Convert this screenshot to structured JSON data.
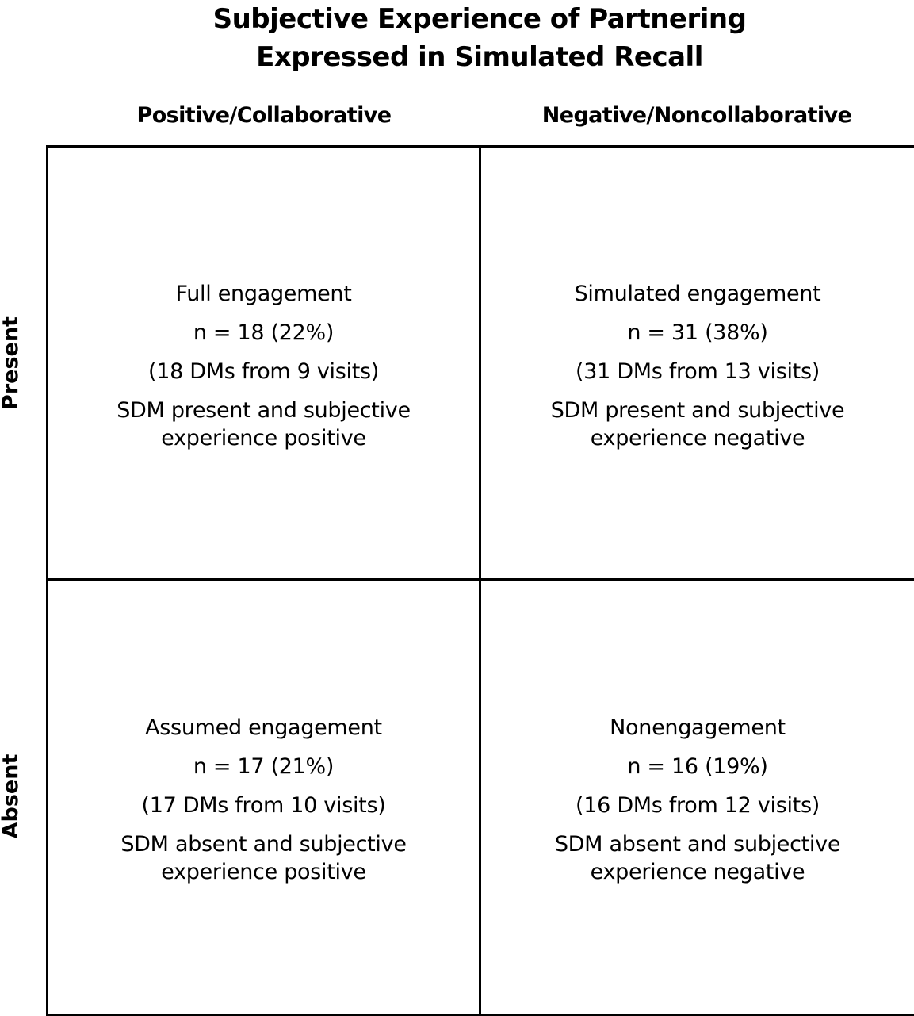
{
  "title": {
    "line1": "Subjective Experience of Partnering",
    "line2": "Expressed in Simulated Recall"
  },
  "columns": {
    "left": "Positive/Collaborative",
    "right": "Negative/Noncollaborative"
  },
  "rows": {
    "top": "Present",
    "bottom": "Absent"
  },
  "cells": {
    "top_left": {
      "name": "Full engagement",
      "count": "n = 18 (22%)",
      "source": "(18 DMs from 9 visits)",
      "desc_line1": "SDM present and subjective",
      "desc_line2": "experience positive"
    },
    "top_right": {
      "name": "Simulated engagement",
      "count": "n = 31 (38%)",
      "source": "(31 DMs from 13 visits)",
      "desc_line1": "SDM present and subjective",
      "desc_line2": "experience negative"
    },
    "bottom_left": {
      "name": "Assumed engagement",
      "count": "n = 17 (21%)",
      "source": "(17 DMs from 10 visits)",
      "desc_line1": "SDM absent and subjective",
      "desc_line2": "experience positive"
    },
    "bottom_right": {
      "name": "Nonengagement",
      "count": "n  =  16 (19%)",
      "source": "(16 DMs from 12 visits)",
      "desc_line1": "SDM absent and subjective",
      "desc_line2": "experience negative"
    }
  }
}
